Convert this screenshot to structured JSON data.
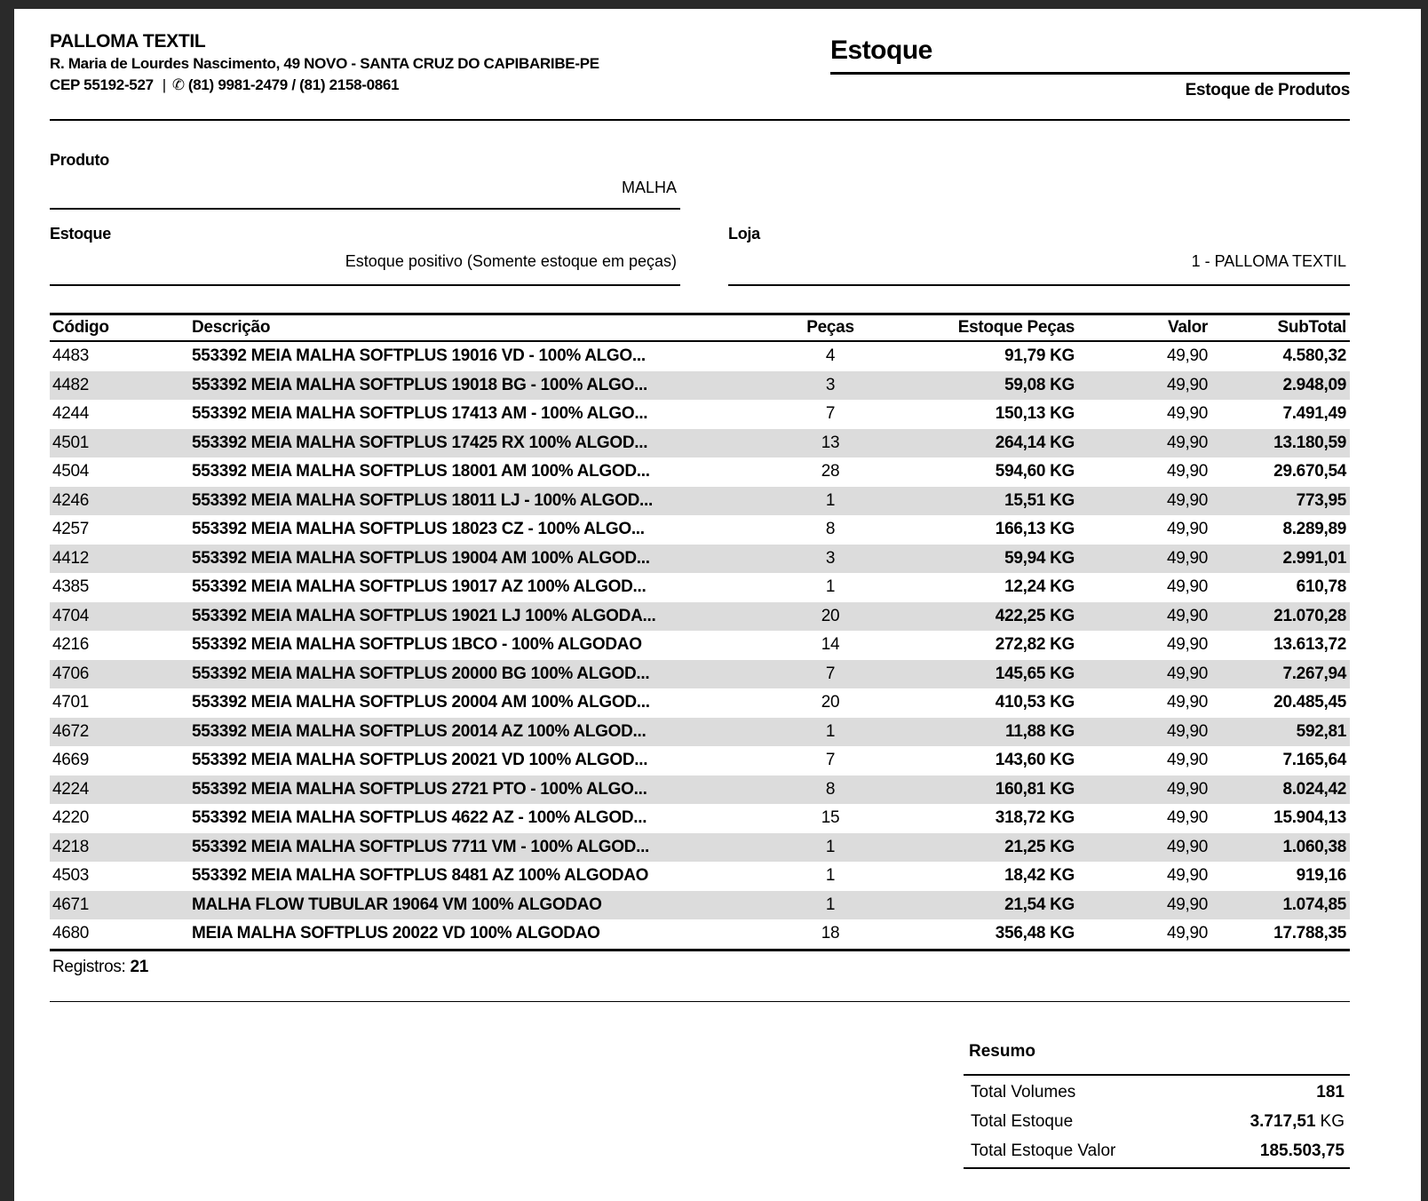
{
  "company": {
    "name": "PALLOMA TEXTIL",
    "address": "R. Maria de Lourdes Nascimento, 49 NOVO - SANTA CRUZ DO CAPIBARIBE-PE",
    "cep": "CEP 55192-527",
    "separator": "|",
    "phone_icon": "✆",
    "phones": "(81) 9981-2479 / (81) 2158-0861"
  },
  "report": {
    "title": "Estoque",
    "subtitle": "Estoque de Produtos"
  },
  "filters": {
    "produto": {
      "label": "Produto",
      "value": "MALHA"
    },
    "estoque": {
      "label": "Estoque",
      "value": "Estoque positivo (Somente estoque em peças)"
    },
    "loja": {
      "label": "Loja",
      "value": "1 - PALLOMA TEXTIL"
    }
  },
  "table": {
    "columns": [
      "Código",
      "Descrição",
      "Peças",
      "Estoque Peças",
      "Valor",
      "SubTotal"
    ],
    "rows": [
      {
        "codigo": "4483",
        "descricao": "553392 MEIA MALHA SOFTPLUS 19016 VD - 100% ALGO...",
        "pecas": "4",
        "estoque_pecas": "91,79 KG",
        "valor": "49,90",
        "subtotal": "4.580,32"
      },
      {
        "codigo": "4482",
        "descricao": "553392 MEIA MALHA SOFTPLUS 19018 BG - 100% ALGO...",
        "pecas": "3",
        "estoque_pecas": "59,08 KG",
        "valor": "49,90",
        "subtotal": "2.948,09"
      },
      {
        "codigo": "4244",
        "descricao": "553392 MEIA MALHA SOFTPLUS 17413 AM - 100% ALGO...",
        "pecas": "7",
        "estoque_pecas": "150,13 KG",
        "valor": "49,90",
        "subtotal": "7.491,49"
      },
      {
        "codigo": "4501",
        "descricao": "553392 MEIA MALHA SOFTPLUS 17425 RX 100% ALGOD...",
        "pecas": "13",
        "estoque_pecas": "264,14 KG",
        "valor": "49,90",
        "subtotal": "13.180,59"
      },
      {
        "codigo": "4504",
        "descricao": "553392 MEIA MALHA SOFTPLUS 18001 AM 100% ALGOD...",
        "pecas": "28",
        "estoque_pecas": "594,60 KG",
        "valor": "49,90",
        "subtotal": "29.670,54"
      },
      {
        "codigo": "4246",
        "descricao": "553392 MEIA MALHA SOFTPLUS 18011 LJ - 100% ALGOD...",
        "pecas": "1",
        "estoque_pecas": "15,51 KG",
        "valor": "49,90",
        "subtotal": "773,95"
      },
      {
        "codigo": "4257",
        "descricao": "553392 MEIA MALHA SOFTPLUS 18023 CZ - 100% ALGO...",
        "pecas": "8",
        "estoque_pecas": "166,13 KG",
        "valor": "49,90",
        "subtotal": "8.289,89"
      },
      {
        "codigo": "4412",
        "descricao": "553392 MEIA MALHA SOFTPLUS 19004 AM 100% ALGOD...",
        "pecas": "3",
        "estoque_pecas": "59,94 KG",
        "valor": "49,90",
        "subtotal": "2.991,01"
      },
      {
        "codigo": "4385",
        "descricao": "553392 MEIA MALHA SOFTPLUS 19017 AZ 100% ALGOD...",
        "pecas": "1",
        "estoque_pecas": "12,24 KG",
        "valor": "49,90",
        "subtotal": "610,78"
      },
      {
        "codigo": "4704",
        "descricao": "553392 MEIA MALHA SOFTPLUS 19021 LJ 100% ALGODA...",
        "pecas": "20",
        "estoque_pecas": "422,25 KG",
        "valor": "49,90",
        "subtotal": "21.070,28"
      },
      {
        "codigo": "4216",
        "descricao": "553392 MEIA MALHA SOFTPLUS 1BCO - 100% ALGODAO",
        "pecas": "14",
        "estoque_pecas": "272,82 KG",
        "valor": "49,90",
        "subtotal": "13.613,72"
      },
      {
        "codigo": "4706",
        "descricao": "553392 MEIA MALHA SOFTPLUS 20000 BG 100% ALGOD...",
        "pecas": "7",
        "estoque_pecas": "145,65 KG",
        "valor": "49,90",
        "subtotal": "7.267,94"
      },
      {
        "codigo": "4701",
        "descricao": "553392 MEIA MALHA SOFTPLUS 20004 AM 100% ALGOD...",
        "pecas": "20",
        "estoque_pecas": "410,53 KG",
        "valor": "49,90",
        "subtotal": "20.485,45"
      },
      {
        "codigo": "4672",
        "descricao": "553392 MEIA MALHA SOFTPLUS 20014 AZ 100% ALGOD...",
        "pecas": "1",
        "estoque_pecas": "11,88 KG",
        "valor": "49,90",
        "subtotal": "592,81"
      },
      {
        "codigo": "4669",
        "descricao": "553392 MEIA MALHA SOFTPLUS 20021 VD 100% ALGOD...",
        "pecas": "7",
        "estoque_pecas": "143,60 KG",
        "valor": "49,90",
        "subtotal": "7.165,64"
      },
      {
        "codigo": "4224",
        "descricao": "553392 MEIA MALHA SOFTPLUS 2721 PTO - 100% ALGO...",
        "pecas": "8",
        "estoque_pecas": "160,81 KG",
        "valor": "49,90",
        "subtotal": "8.024,42"
      },
      {
        "codigo": "4220",
        "descricao": "553392 MEIA MALHA SOFTPLUS 4622 AZ - 100% ALGOD...",
        "pecas": "15",
        "estoque_pecas": "318,72 KG",
        "valor": "49,90",
        "subtotal": "15.904,13"
      },
      {
        "codigo": "4218",
        "descricao": "553392 MEIA MALHA SOFTPLUS 7711 VM - 100% ALGOD...",
        "pecas": "1",
        "estoque_pecas": "21,25 KG",
        "valor": "49,90",
        "subtotal": "1.060,38"
      },
      {
        "codigo": "4503",
        "descricao": "553392 MEIA MALHA SOFTPLUS 8481 AZ 100% ALGODAO",
        "pecas": "1",
        "estoque_pecas": "18,42 KG",
        "valor": "49,90",
        "subtotal": "919,16"
      },
      {
        "codigo": "4671",
        "descricao": "MALHA FLOW TUBULAR 19064 VM 100% ALGODAO",
        "pecas": "1",
        "estoque_pecas": "21,54 KG",
        "valor": "49,90",
        "subtotal": "1.074,85"
      },
      {
        "codigo": "4680",
        "descricao": "MEIA MALHA SOFTPLUS 20022 VD 100% ALGODAO",
        "pecas": "18",
        "estoque_pecas": "356,48 KG",
        "valor": "49,90",
        "subtotal": "17.788,35"
      }
    ],
    "registros_label": "Registros:",
    "registros_value": "21"
  },
  "resumo": {
    "title": "Resumo",
    "rows": [
      {
        "label": "Total Volumes",
        "value": "181",
        "unit": ""
      },
      {
        "label": "Total Estoque",
        "value": "3.717,51",
        "unit": "KG"
      },
      {
        "label": "Total Estoque Valor",
        "value": "185.503,75",
        "unit": ""
      }
    ]
  },
  "colors": {
    "row_stripe": "#dcdcdc",
    "frame": "#2a2a2a",
    "page": "#ffffff",
    "text": "#000000"
  }
}
